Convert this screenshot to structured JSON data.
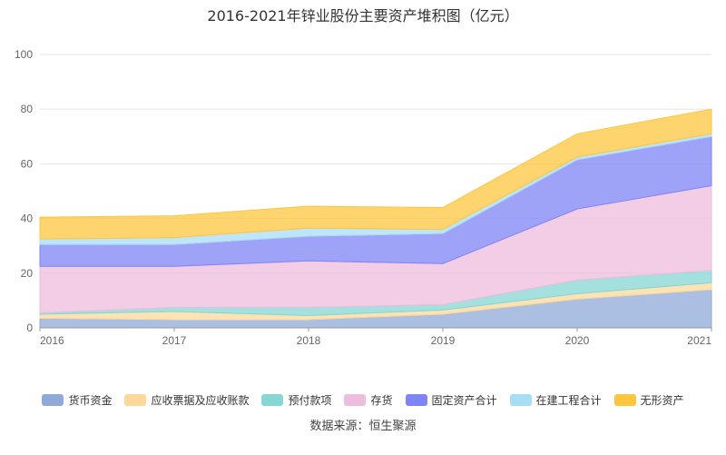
{
  "chart_data": {
    "type": "area",
    "title": "2016-2021年锌业股份主要资产堆积图（亿元）",
    "source": "数据来源：恒生聚源",
    "x": [
      "2016",
      "2017",
      "2018",
      "2019",
      "2020",
      "2021"
    ],
    "ylim": [
      0,
      100
    ],
    "yticks": [
      "0",
      "20",
      "40",
      "60",
      "80",
      "100"
    ],
    "stacked": true,
    "grid": true,
    "legend_position": "bottom",
    "series": [
      {
        "name": "货币资金",
        "color": "#8fa9d8",
        "values": [
          3.5,
          3.0,
          3.0,
          5.0,
          10.5,
          14.0
        ]
      },
      {
        "name": "应收票据及应收账款",
        "color": "#fcd89a",
        "values": [
          1.5,
          3.0,
          1.5,
          1.5,
          2.0,
          2.5
        ]
      },
      {
        "name": "预付款项",
        "color": "#86d6d3",
        "values": [
          0.5,
          1.5,
          3.0,
          2.0,
          5.0,
          4.5
        ]
      },
      {
        "name": "存货",
        "color": "#eebcdc",
        "values": [
          17.0,
          15.0,
          17.0,
          15.0,
          26.0,
          31.0
        ]
      },
      {
        "name": "固定资产合计",
        "color": "#7f84f6",
        "values": [
          8.0,
          8.0,
          9.0,
          11.0,
          18.0,
          18.0
        ]
      },
      {
        "name": "在建工程合计",
        "color": "#a8ddf6",
        "values": [
          2.0,
          2.5,
          3.0,
          1.5,
          1.0,
          1.0
        ]
      },
      {
        "name": "无形资产",
        "color": "#fdc63e",
        "values": [
          8.0,
          8.0,
          8.0,
          8.0,
          8.5,
          9.0
        ]
      }
    ]
  }
}
